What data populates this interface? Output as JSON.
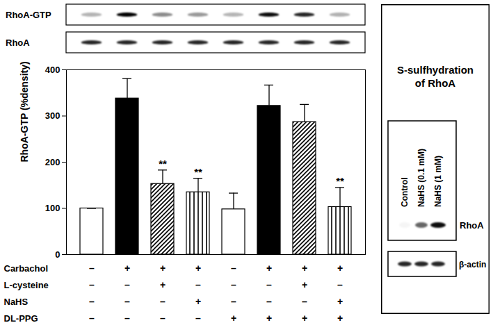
{
  "chart_data": {
    "type": "bar",
    "y_label": "RhoA-GTP (%density)",
    "categories": [
      null,
      null,
      null,
      null,
      null,
      null,
      null,
      null
    ],
    "values": [
      100,
      338,
      153,
      135,
      98,
      322,
      287,
      103
    ],
    "errors": [
      0,
      43,
      30,
      30,
      35,
      45,
      38,
      42
    ],
    "colors": [
      "#ffffff",
      "#000000",
      "#000000",
      "#000000",
      "#ffffff",
      "#000000",
      "#000000",
      "#000000"
    ],
    "annotations": [
      null,
      null,
      "**",
      "**",
      null,
      null,
      null,
      "**"
    ],
    "conditions": [
      {
        "name": "Carbachol",
        "values": [
          "–",
          "+",
          "+",
          "+",
          "–",
          "+",
          "+",
          "+"
        ]
      },
      {
        "name": "L-cysteine",
        "values": [
          "–",
          "–",
          "+",
          "–",
          "–",
          "–",
          "+",
          "–"
        ]
      },
      {
        "name": "NaHS",
        "values": [
          "–",
          "–",
          "–",
          "+",
          "–",
          "–",
          "–",
          "+"
        ]
      },
      {
        "name": "DL-PPG",
        "values": [
          "–",
          "–",
          "–",
          "–",
          "+",
          "+",
          "+",
          "+"
        ]
      }
    ],
    "blots": [
      "RhoA-GTP",
      "RhoA"
    ],
    "ylim": [
      0,
      400
    ],
    "yticks": [
      0,
      100,
      200,
      300,
      400
    ]
  },
  "panel": {
    "title": "S-sulfhydration of RhoA",
    "lanes": [
      "Control",
      "NaHS (0.1 mM)",
      "NaHS (1 mM)"
    ],
    "blots": [
      "RhoA",
      "β-actin"
    ]
  }
}
